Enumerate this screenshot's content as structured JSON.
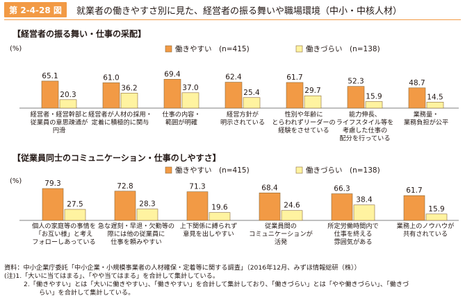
{
  "figure": {
    "number": "第 2-4-28 図",
    "title": "就業者の働きやすさ別に見た、経営者の振る舞いや職場環境（中小・中核人材）"
  },
  "colors": {
    "accent": "#f29a45",
    "series_work_easy": "#f29a45",
    "series_work_hard": "#fff3a0"
  },
  "chart_data": [
    {
      "type": "bar",
      "section_title": "【経営者の振る舞い・仕事の采配】",
      "ylabel": "(%)",
      "ylim": [
        0,
        80
      ],
      "grid": false,
      "legend_position": "top-right",
      "categories": [
        [
          "経営者・経営幹部と",
          "従業員の意思疎通が",
          "円滑"
        ],
        [
          "経営者が人材の採用・",
          "定着に積極的に関与"
        ],
        [
          "仕事の内容・",
          "範囲が明確"
        ],
        [
          "経営方針が",
          "明示されている"
        ],
        [
          "性別や年齢に",
          "とらわれずリーダーの",
          "経験をさせている"
        ],
        [
          "能力伸長、",
          "ライフスタイル等を",
          "考慮した仕事の",
          "配分を行っている"
        ],
        [
          "業務量・",
          "業務負担が公平"
        ]
      ],
      "series": [
        {
          "name": "働きやすい　(n=415)",
          "values": [
            65.1,
            61.0,
            69.4,
            62.4,
            61.7,
            52.3,
            48.7
          ]
        },
        {
          "name": "働きづらい　(n=138)",
          "values": [
            20.3,
            36.2,
            37.0,
            25.4,
            29.7,
            15.9,
            14.5
          ]
        }
      ]
    },
    {
      "type": "bar",
      "section_title": "【従業員同士のコミュニケーション・仕事のしやすさ】",
      "ylabel": "(%)",
      "ylim": [
        0,
        80
      ],
      "grid": false,
      "legend_position": "top-right",
      "categories": [
        [
          "個人の家庭等の事情を",
          "「お互い様」と考え",
          "フォローしあっている"
        ],
        [
          "急な遅刻・早退・欠勤等の",
          "際には他の従業員に",
          "仕事を頼みやすい"
        ],
        [
          "上下関係に縛られず",
          "意見を出しやすい"
        ],
        [
          "従業員間の",
          "コミュニケーションが",
          "活発"
        ],
        [
          "所定労働時間内で",
          "仕事を終える",
          "雰囲気がある"
        ],
        [
          "業務上のノウハウが",
          "共有されている"
        ]
      ],
      "series": [
        {
          "name": "働きやすい　(n=415)",
          "values": [
            79.3,
            72.8,
            71.3,
            68.4,
            66.3,
            61.7
          ]
        },
        {
          "name": "働きづらい　(n=138)",
          "values": [
            27.5,
            28.3,
            19.6,
            24.6,
            38.4,
            15.9
          ]
        }
      ]
    }
  ],
  "notes": {
    "source": "資料：中小企業庁委託「中小企業・小規模事業者の人材確保・定着等に関する調査」（2016年12月、みずほ情報総研（株））",
    "note1": "(注)1.「大いに当てはまる」、「やや当てはまる」を合計して集計している。",
    "note2a": "2.「働きやすい」とは「大いに働きやすい」、「働きやすい」を合計して集計しており、「働きづらい」とは「やや働きづらい」、「働きづ",
    "note2b": "らい」を合計して集計している。"
  }
}
